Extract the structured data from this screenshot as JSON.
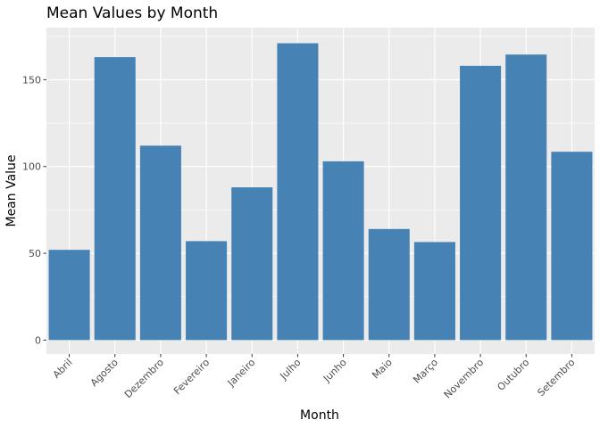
{
  "chart_data": {
    "type": "bar",
    "title": "Mean Values by Month",
    "xlabel": "Month",
    "ylabel": "Mean Value",
    "categories": [
      "Abril",
      "Agosto",
      "Dezembro",
      "Fevereiro",
      "Janeiro",
      "Julho",
      "Junho",
      "Maio",
      "Março",
      "Novembro",
      "Outubro",
      "Setembro"
    ],
    "values": [
      52,
      163,
      112,
      57,
      88,
      171,
      103,
      64,
      56.5,
      158,
      164.5,
      108.5
    ],
    "ylim": [
      -8,
      180
    ],
    "yticks": [
      0,
      50,
      100,
      150
    ],
    "ytick_labels": [
      "0",
      "50",
      "100",
      "150"
    ],
    "grid": true,
    "legend": "none",
    "colors": {
      "bar": "#4682b4",
      "panel": "#ebebeb",
      "grid": "#ffffff",
      "tick_label": "#4d4d4d",
      "tick": "#333333"
    }
  }
}
